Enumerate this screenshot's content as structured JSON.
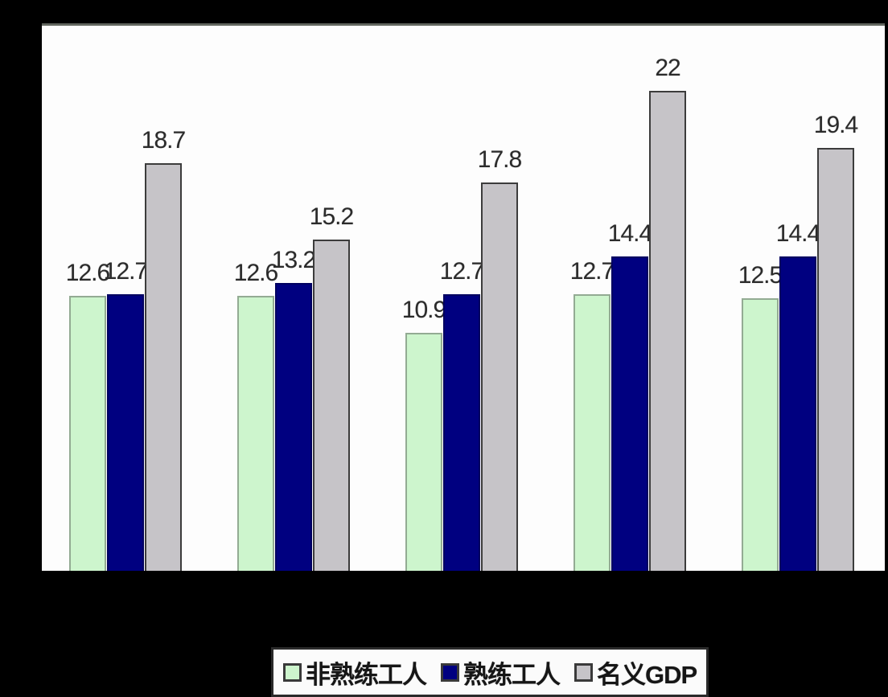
{
  "background_color": "#000000",
  "plot_background_color": "#fdfdfd",
  "chart_data": {
    "type": "bar",
    "title": "",
    "xlabel": "",
    "ylabel": "",
    "categories": [
      "",
      "",
      "",
      "",
      ""
    ],
    "series": [
      {
        "name": "非熟练工人",
        "color": "#cdf5cd",
        "border_color": "#93ab93",
        "values": [
          12.6,
          12.6,
          10.9,
          12.7,
          12.5
        ]
      },
      {
        "name": "熟练工人",
        "color": "#000080",
        "border_color": "#000060",
        "values": [
          12.7,
          13.2,
          12.7,
          14.4,
          14.4
        ]
      },
      {
        "name": "名义GDP",
        "color": "#c6c4c8",
        "border_color": "#3c3c3c",
        "values": [
          18.7,
          15.2,
          17.8,
          22,
          19.4
        ]
      }
    ],
    "value_labels": [
      [
        "12.6",
        "12.7",
        "18.7"
      ],
      [
        "12.6",
        "13.2",
        "15.2"
      ],
      [
        "10.9",
        "12.7",
        "17.8"
      ],
      [
        "12.7",
        "14.4",
        "22"
      ],
      [
        "12.5",
        "14.4",
        "19.4"
      ]
    ],
    "ylim": [
      0,
      25
    ],
    "grid": false,
    "axis_ticks_visible": false,
    "legend_position": "bottom",
    "legend_labels": [
      "非熟练工人",
      "熟练工人",
      "名义GDP"
    ]
  }
}
